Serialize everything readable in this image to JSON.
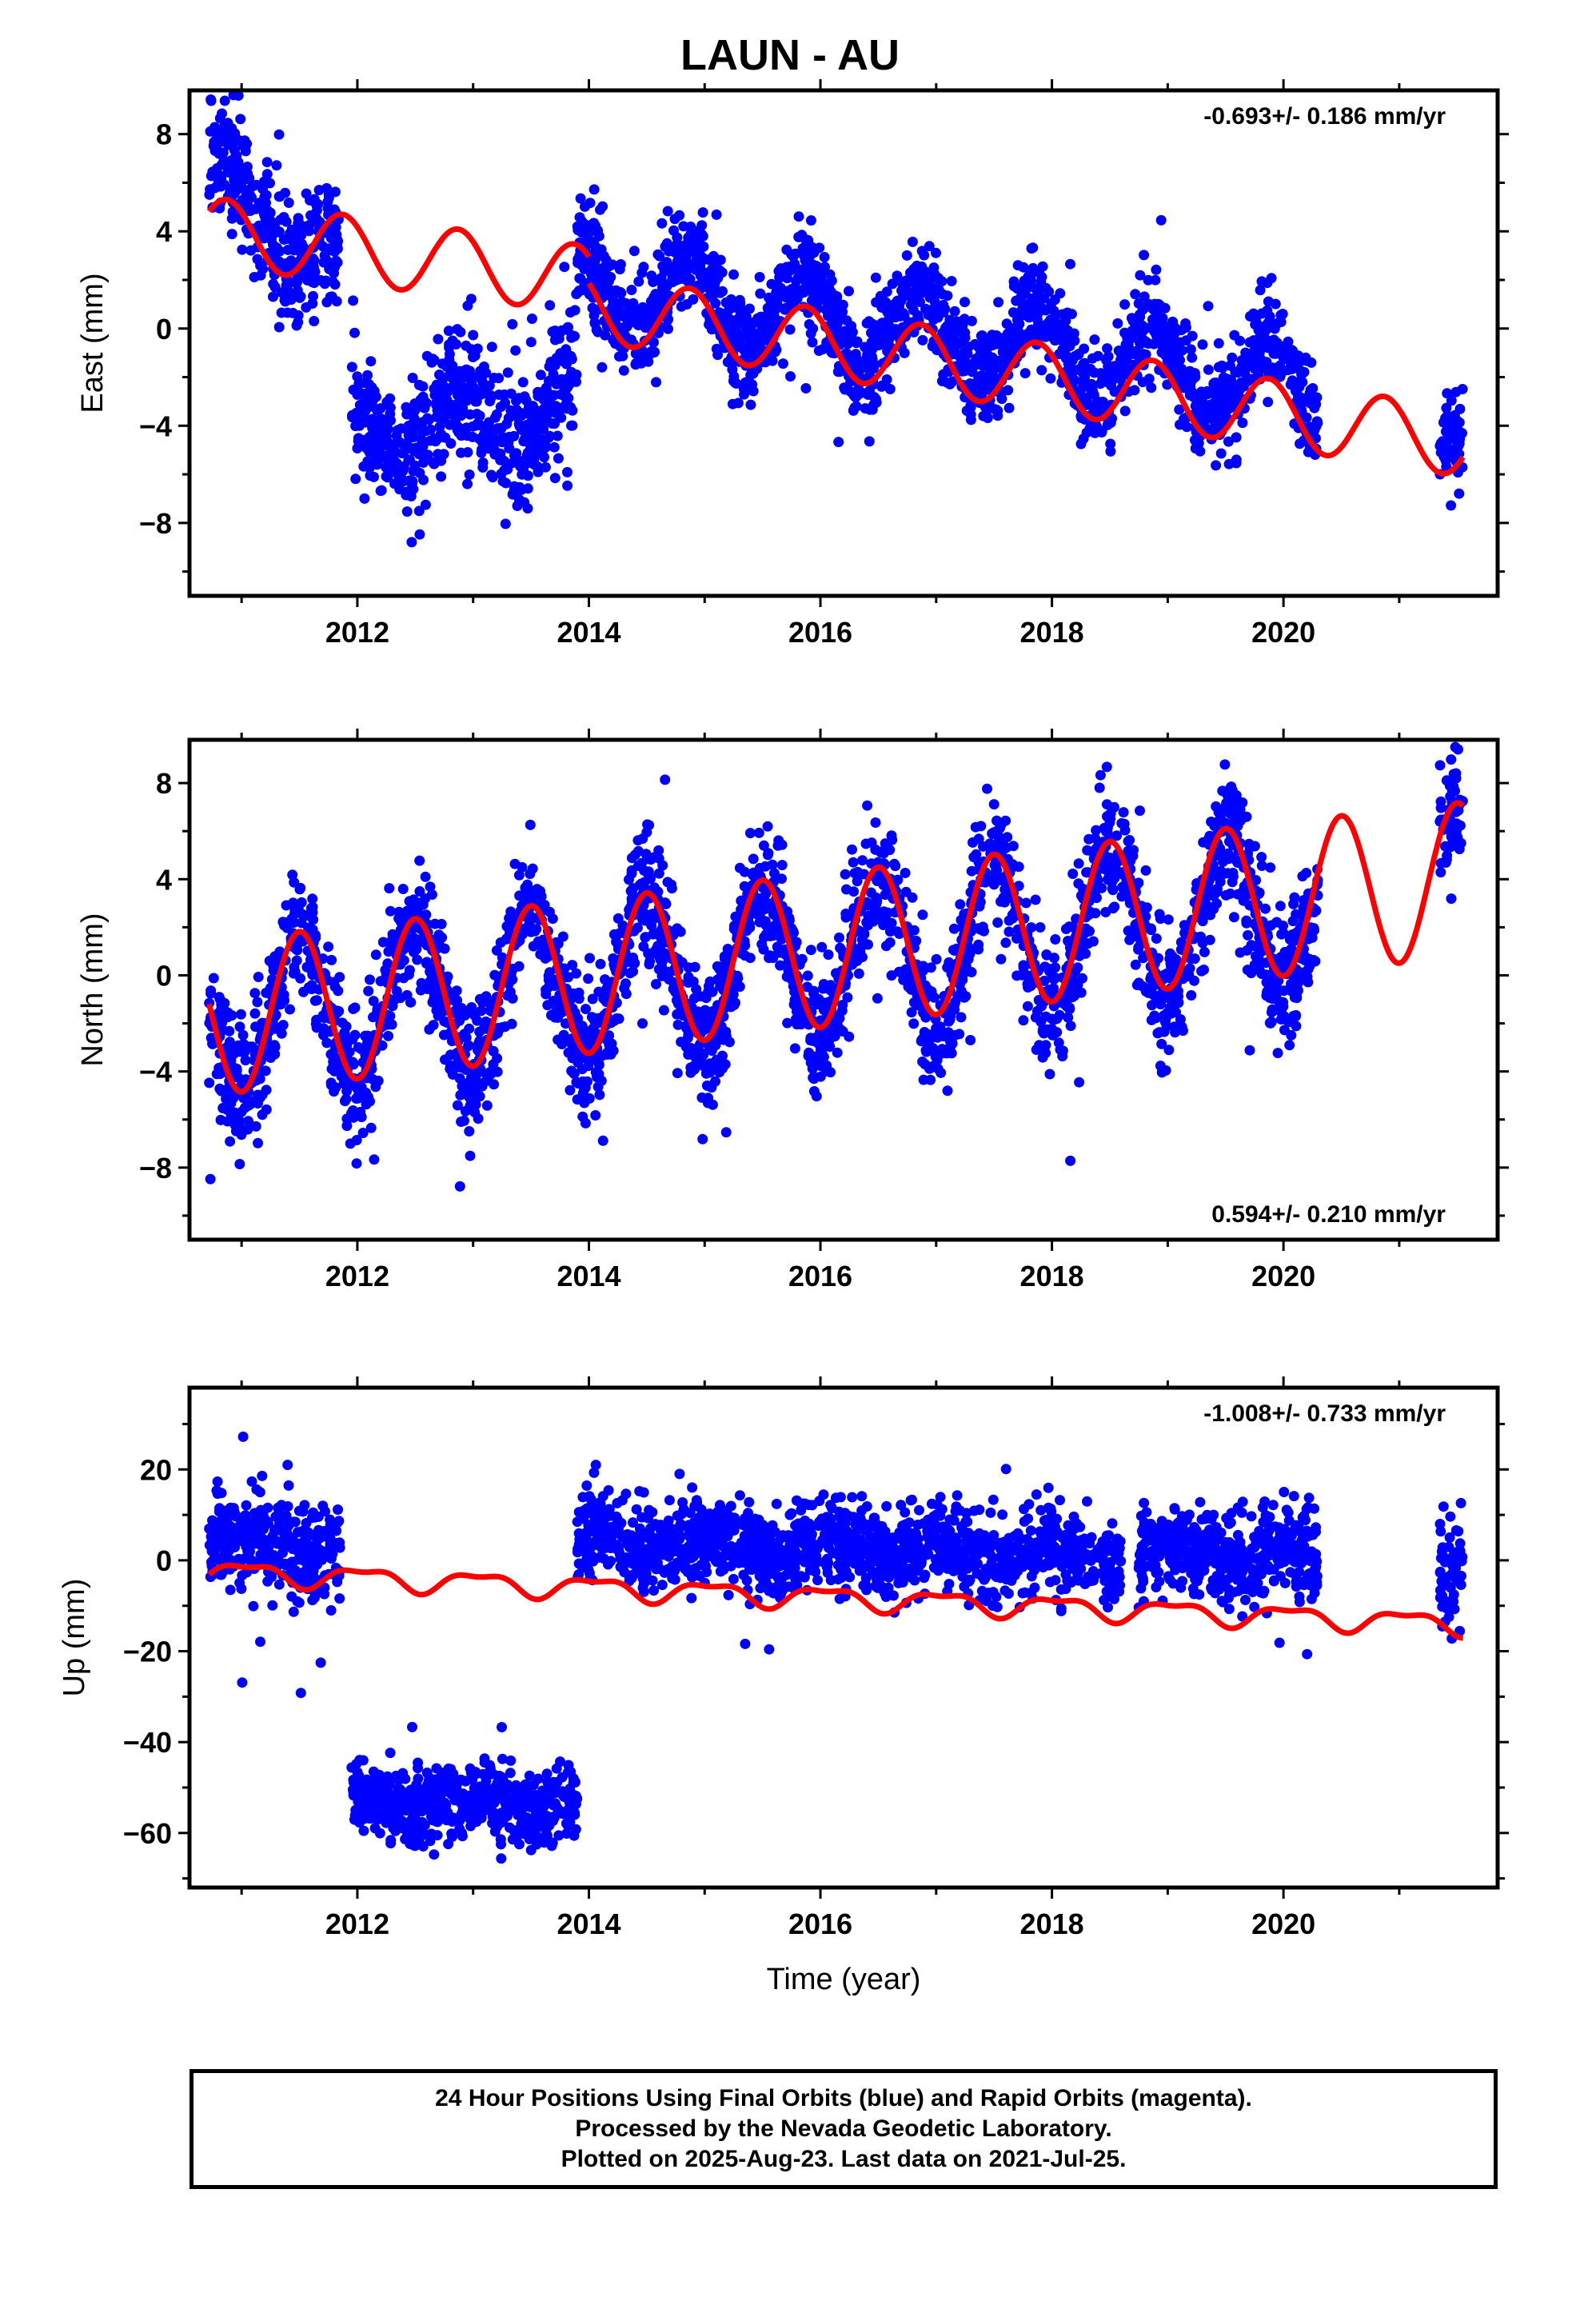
{
  "title": "LAUN - AU",
  "colors": {
    "points": "#0000ff",
    "model": "#ff0000",
    "frame": "#000000"
  },
  "caption": {
    "line1": "24 Hour Positions Using Final Orbits (blue) and Rapid Orbits (magenta).",
    "line2": "Processed by the Nevada Geodetic Laboratory.",
    "line3": "Plotted on 2025-Aug-23. Last data on 2021-Jul-25."
  },
  "chart_data": [
    {
      "type": "scatter",
      "ylabel": "East (mm)",
      "xlabel": "",
      "rate_label": "-0.693+/- 0.186 mm/yr",
      "rate_position": "top-right",
      "xlim": [
        2010.55,
        2021.85
      ],
      "ylim": [
        -11,
        9.8
      ],
      "xticks": [
        2012,
        2014,
        2016,
        2018,
        2020
      ],
      "yticks": [
        8,
        4,
        0,
        -4,
        -8
      ],
      "model": {
        "type": "line",
        "amp": 1.4,
        "phase_peak": 0.87,
        "segments": [
          {
            "x": [
              2010.72,
              2014.0
            ],
            "level": [
              4.0,
              2.0
            ]
          },
          {
            "x": [
              2014.0,
              2021.55
            ],
            "level": [
              0.9,
              -4.7
            ]
          }
        ]
      },
      "observations": [
        {
          "x": [
            2010.72,
            2011.85
          ],
          "y": [
            6.2,
            2.5
          ],
          "amp": 1.3,
          "noise": 1.2
        },
        {
          "x": [
            2011.95,
            2013.9
          ],
          "y": [
            -4.2,
            -3.2
          ],
          "amp": 1.3,
          "noise": 1.4
        },
        {
          "x": [
            2013.9,
            2020.3
          ],
          "y": [
            1.8,
            -2.5
          ],
          "amp": 1.7,
          "noise": 1.0
        },
        {
          "x": [
            2021.35,
            2021.55
          ],
          "y": [
            -4.5,
            -4.5
          ],
          "amp": 0,
          "noise": 1.0
        }
      ]
    },
    {
      "type": "scatter",
      "ylabel": "North (mm)",
      "xlabel": "",
      "rate_label": "0.594+/- 0.210 mm/yr",
      "rate_position": "bottom-right",
      "xlim": [
        2010.55,
        2021.85
      ],
      "ylim": [
        -11,
        9.8
      ],
      "xticks": [
        2012,
        2014,
        2016,
        2018,
        2020
      ],
      "yticks": [
        8,
        4,
        0,
        -4,
        -8
      ],
      "model": {
        "type": "line",
        "amp": 3.2,
        "phase_peak": 0.5,
        "segments": [
          {
            "x": [
              2010.72,
              2021.55
            ],
            "level": [
              -1.8,
              4.0
            ]
          }
        ]
      },
      "observations": [
        {
          "x": [
            2010.72,
            2020.3
          ],
          "y": [
            -1.8,
            2.8
          ],
          "amp": 3.2,
          "noise": 1.3
        },
        {
          "x": [
            2021.35,
            2021.55
          ],
          "y": [
            6.6,
            6.6
          ],
          "amp": 0,
          "noise": 1.2
        }
      ]
    },
    {
      "type": "scatter",
      "ylabel": "Up (mm)",
      "xlabel": "Time (year)",
      "rate_label": "-1.008+/- 0.733 mm/yr",
      "rate_position": "top-right",
      "xlim": [
        2010.55,
        2021.85
      ],
      "ylim": [
        -72,
        38
      ],
      "xticks": [
        2012,
        2014,
        2016,
        2018,
        2020
      ],
      "yticks": [
        20,
        0,
        -20,
        -40,
        -60
      ],
      "model": {
        "type": "line",
        "amp": 2.2,
        "phase_peak": 0.05,
        "segments": [
          {
            "x": [
              2010.72,
              2021.55
            ],
            "level": [
              -2.5,
              -14.0
            ]
          }
        ]
      },
      "observations": [
        {
          "x": [
            2010.72,
            2011.85
          ],
          "y": [
            4.0,
            1.0
          ],
          "amp": 2.0,
          "noise": 5.5
        },
        {
          "x": [
            2011.95,
            2013.9
          ],
          "y": [
            -53.0,
            -54.0
          ],
          "amp": 1.5,
          "noise": 4.0
        },
        {
          "x": [
            2013.9,
            2018.6
          ],
          "y": [
            4.0,
            1.0
          ],
          "amp": 2.0,
          "noise": 4.5
        },
        {
          "x": [
            2018.75,
            2020.3
          ],
          "y": [
            1.5,
            0.5
          ],
          "amp": 2.0,
          "noise": 4.5
        },
        {
          "x": [
            2021.35,
            2021.55
          ],
          "y": [
            -2.0,
            -2.0
          ],
          "amp": 0,
          "noise": 6.0
        }
      ]
    }
  ]
}
